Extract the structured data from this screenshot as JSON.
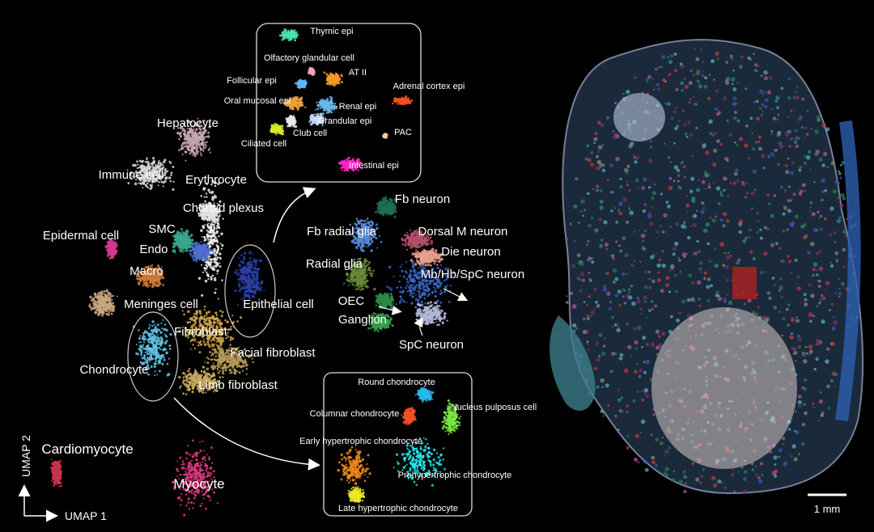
{
  "chart_data": {
    "type": "scatter",
    "xlabel": "UMAP 1",
    "ylabel": "UMAP 2",
    "grid": false,
    "scale_bar_label": "1 mm",
    "clusters": [
      {
        "name": "Hepatocyte",
        "color": "#c9a7b4"
      },
      {
        "name": "Immune cell",
        "color": "#d8d8d8"
      },
      {
        "name": "Erythrocyte",
        "color": "#f2f2f2"
      },
      {
        "name": "Choroid plexus",
        "color": "#e0e0e0"
      },
      {
        "name": "SMC",
        "color": "#3aa68c"
      },
      {
        "name": "Epidermal cell",
        "color": "#d23a8a"
      },
      {
        "name": "Endo",
        "color": "#4f6fd0"
      },
      {
        "name": "Macro",
        "color": "#c97a3b"
      },
      {
        "name": "Meninges cell",
        "color": "#c8a77f"
      },
      {
        "name": "Epithelial cell",
        "color": "#2a3fa8"
      },
      {
        "name": "Fibroblast",
        "color": "#d4a84a"
      },
      {
        "name": "Facial fibroblast",
        "color": "#b59b56"
      },
      {
        "name": "Chondrocyte",
        "color": "#62c3e6"
      },
      {
        "name": "Limb fibroblast",
        "color": "#c7a95e"
      },
      {
        "name": "Cardiomyocyte",
        "color": "#c8324a"
      },
      {
        "name": "Myocyte",
        "color": "#e2377f"
      }
    ],
    "neuron_clusters": [
      {
        "name": "Fb neuron",
        "color": "#1e6e52"
      },
      {
        "name": "Fb radial glia",
        "color": "#5a8ad8"
      },
      {
        "name": "Dorsal M neuron",
        "color": "#b14f68"
      },
      {
        "name": "Die neuron",
        "color": "#e6a08a"
      },
      {
        "name": "Radial glia",
        "color": "#6b8a3b"
      },
      {
        "name": "Mb/Hb/SpC neuron",
        "color": "#3a67c8"
      },
      {
        "name": "OEC",
        "color": "#2c8a45"
      },
      {
        "name": "Ganglion",
        "color": "#38a04e"
      },
      {
        "name": "SpC neuron",
        "color": "#b0b8d8"
      }
    ],
    "epithelial_subtypes": [
      {
        "name": "Thymic epi",
        "color": "#4fe0b0"
      },
      {
        "name": "Olfactory glandular cell",
        "color": "#f0a0c0"
      },
      {
        "name": "AT II",
        "color": "#f59a28"
      },
      {
        "name": "Follicular epi",
        "color": "#5db7ff"
      },
      {
        "name": "Adrenal cortex epi",
        "color": "#f05020"
      },
      {
        "name": "Oral mucosal epi",
        "color": "#f0a040"
      },
      {
        "name": "Renal epi",
        "color": "#68b8f0"
      },
      {
        "name": "Grandular epi",
        "color": "#c8d8ff"
      },
      {
        "name": "Club cell",
        "color": "#e8e8e8"
      },
      {
        "name": "Ciliated cell",
        "color": "#d8e828"
      },
      {
        "name": "PAC",
        "color": "#f0d0a0"
      },
      {
        "name": "Intestinal epi",
        "color": "#ff28c8"
      }
    ],
    "chondrocyte_subtypes": [
      {
        "name": "Round chondrocyte",
        "color": "#28b8f0"
      },
      {
        "name": "Columnar chondrocyte",
        "color": "#f05028"
      },
      {
        "name": "Nucleus pulposus cell",
        "color": "#78e840"
      },
      {
        "name": "Early hypertrophic chondrocyte",
        "color": "#f08a18"
      },
      {
        "name": "Prehypertrophic chondrocyte",
        "color": "#28e8f0"
      },
      {
        "name": "Late hypertrophic chondrocyte",
        "color": "#e8e828"
      }
    ]
  }
}
